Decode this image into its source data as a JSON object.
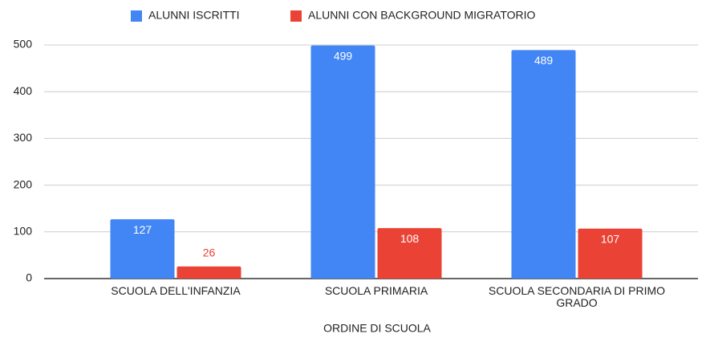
{
  "chart_data": {
    "type": "bar",
    "categories": [
      "SCUOLA DELL'INFANZIA",
      "SCUOLA PRIMARIA",
      "SCUOLA SECONDARIA DI PRIMO GRADO"
    ],
    "series": [
      {
        "name": "ALUNNI ISCRITTI",
        "color": "#4285f4",
        "values": [
          127,
          499,
          489
        ]
      },
      {
        "name": "ALUNNI CON BACKGROUND MIGRATORIO",
        "color": "#ea4335",
        "values": [
          26,
          108,
          107
        ]
      }
    ],
    "x_label": "ORDINE DI SCUOLA",
    "ylim": [
      0,
      500
    ],
    "yticks": [
      0,
      100,
      200,
      300,
      400,
      500
    ],
    "grid": true,
    "legend": "top"
  }
}
